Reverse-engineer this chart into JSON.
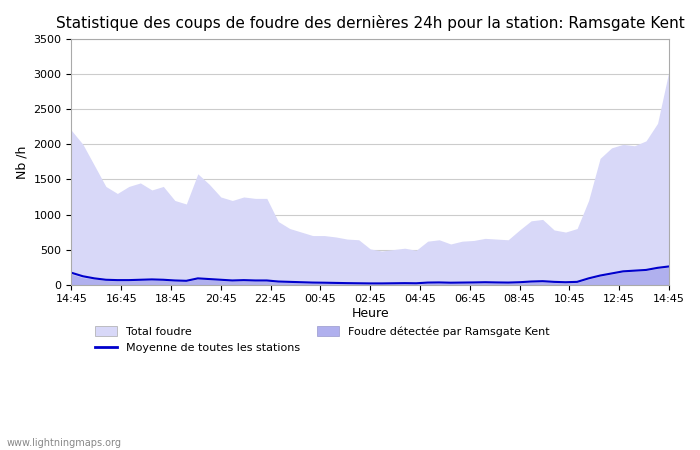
{
  "title": "Statistique des coups de foudre des dernières 24h pour la station: Ramsgate Kent",
  "ylabel": "Nb /h",
  "xlabel": "Heure",
  "watermark": "www.lightningmaps.org",
  "ylim": [
    0,
    3500
  ],
  "yticks": [
    0,
    500,
    1000,
    1500,
    2000,
    2500,
    3000,
    3500
  ],
  "xtick_labels": [
    "14:45",
    "16:45",
    "18:45",
    "20:45",
    "22:45",
    "00:45",
    "02:45",
    "04:45",
    "06:45",
    "08:45",
    "10:45",
    "12:45",
    "14:45"
  ],
  "total_foudre_color": "#d8d8f8",
  "local_foudre_color": "#b0b0ee",
  "moyenne_color": "#0000cc",
  "background_color": "#ffffff",
  "grid_color": "#cccccc",
  "title_fontsize": 11,
  "axis_fontsize": 9,
  "tick_fontsize": 8,
  "total_foudre": [
    2200,
    2000,
    1700,
    1400,
    1300,
    1400,
    1450,
    1350,
    1400,
    1200,
    1150,
    1580,
    1430,
    1250,
    1200,
    1250,
    1230,
    1230,
    900,
    800,
    750,
    700,
    700,
    680,
    650,
    640,
    510,
    480,
    500,
    520,
    490,
    620,
    640,
    580,
    620,
    630,
    660,
    650,
    640,
    780,
    910,
    930,
    780,
    750,
    800,
    1200,
    1800,
    1950,
    2000,
    1980,
    2050,
    2300,
    3050
  ],
  "local_foudre": [
    150,
    100,
    80,
    60,
    55,
    55,
    60,
    65,
    60,
    50,
    45,
    80,
    70,
    60,
    50,
    55,
    50,
    50,
    35,
    30,
    25,
    20,
    18,
    15,
    12,
    10,
    8,
    8,
    10,
    12,
    10,
    20,
    22,
    18,
    20,
    22,
    25,
    22,
    20,
    25,
    35,
    40,
    30,
    25,
    30,
    80,
    120,
    150,
    180,
    190,
    200,
    230,
    250
  ],
  "moyenne": [
    170,
    120,
    90,
    70,
    65,
    65,
    70,
    75,
    70,
    60,
    55,
    90,
    80,
    70,
    60,
    65,
    60,
    60,
    45,
    40,
    35,
    30,
    28,
    25,
    22,
    20,
    18,
    18,
    20,
    22,
    20,
    30,
    32,
    28,
    30,
    32,
    35,
    32,
    30,
    35,
    45,
    50,
    40,
    35,
    40,
    90,
    130,
    160,
    190,
    200,
    210,
    240,
    260
  ]
}
